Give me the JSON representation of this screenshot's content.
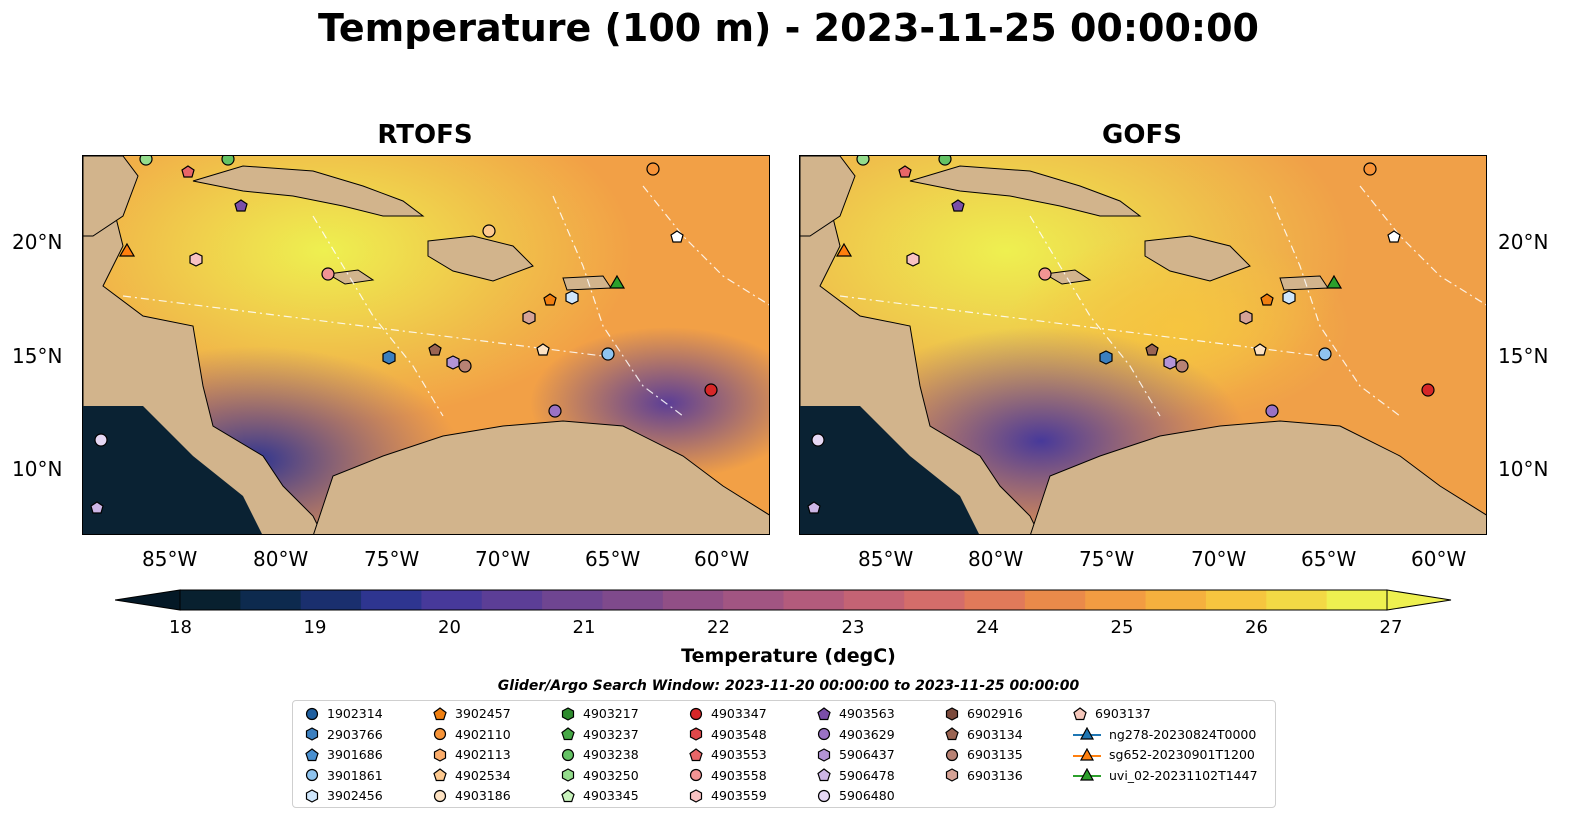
{
  "title": "Temperature (100 m) - 2023-11-25 00:00:00",
  "panels": [
    {
      "name": "RTOFS"
    },
    {
      "name": "GOFS"
    }
  ],
  "axes": {
    "lon_ticks": [
      "85°W",
      "80°W",
      "75°W",
      "70°W",
      "65°W",
      "60°W"
    ],
    "lat_ticks": [
      "20°N",
      "15°N",
      "10°N"
    ]
  },
  "colorbar": {
    "label": "Temperature (degC)",
    "ticks": [
      "18",
      "19",
      "20",
      "21",
      "22",
      "23",
      "24",
      "25",
      "26",
      "27"
    ],
    "colors": [
      "#08202f",
      "#0d2a4e",
      "#1a2f6e",
      "#2e3590",
      "#47399a",
      "#5c3e96",
      "#6f4591",
      "#7f4a8c",
      "#914f86",
      "#a25582",
      "#b35b7c",
      "#c46374",
      "#d46d6a",
      "#e17a5a",
      "#ea8a4a",
      "#f29c42",
      "#f5b03e",
      "#f6c53f",
      "#f3d945",
      "#eef050"
    ]
  },
  "search_window": "Glider/Argo Search Window: 2023-11-20 00:00:00 to 2023-11-25 00:00:00",
  "legend": {
    "columns": [
      [
        {
          "label": "1902314",
          "marker": "circle",
          "color": "#1f5f9f"
        },
        {
          "label": "2903766",
          "marker": "hexagon",
          "color": "#3b7fbf"
        },
        {
          "label": "3901686",
          "marker": "pentagon",
          "color": "#4a90d0"
        },
        {
          "label": "3901861",
          "marker": "circle",
          "color": "#8fc4ef"
        },
        {
          "label": "3902456",
          "marker": "hexagon",
          "color": "#cfe6fb"
        }
      ],
      [
        {
          "label": "3902457",
          "marker": "pentagon",
          "color": "#f07f10"
        },
        {
          "label": "4902110",
          "marker": "circle",
          "color": "#f79438"
        },
        {
          "label": "4902113",
          "marker": "hexagon",
          "color": "#fbad6b"
        },
        {
          "label": "4902534",
          "marker": "pentagon",
          "color": "#fdc98f"
        },
        {
          "label": "4903186",
          "marker": "circle",
          "color": "#fde2c2"
        }
      ],
      [
        {
          "label": "4903217",
          "marker": "hexagon",
          "color": "#2e8b2e"
        },
        {
          "label": "4903237",
          "marker": "pentagon",
          "color": "#46a846"
        },
        {
          "label": "4903238",
          "marker": "circle",
          "color": "#64c264"
        },
        {
          "label": "4903250",
          "marker": "hexagon",
          "color": "#94dc8c"
        },
        {
          "label": "4903345",
          "marker": "pentagon",
          "color": "#c9f3bd"
        }
      ],
      [
        {
          "label": "4903347",
          "marker": "circle",
          "color": "#d62728"
        },
        {
          "label": "4903548",
          "marker": "hexagon",
          "color": "#e0484a"
        },
        {
          "label": "4903553",
          "marker": "pentagon",
          "color": "#e86668"
        },
        {
          "label": "4903558",
          "marker": "circle",
          "color": "#f29494"
        },
        {
          "label": "4903559",
          "marker": "hexagon",
          "color": "#f8c2c2"
        }
      ],
      [
        {
          "label": "4903563",
          "marker": "pentagon",
          "color": "#7a4ea8"
        },
        {
          "label": "4903629",
          "marker": "circle",
          "color": "#9a72c4"
        },
        {
          "label": "5906437",
          "marker": "hexagon",
          "color": "#b394d6"
        },
        {
          "label": "5906478",
          "marker": "pentagon",
          "color": "#cdb6e6"
        },
        {
          "label": "5906480",
          "marker": "circle",
          "color": "#e6d8f4"
        }
      ],
      [
        {
          "label": "6902916",
          "marker": "hexagon",
          "color": "#7b4a3c"
        },
        {
          "label": "6903134",
          "marker": "pentagon",
          "color": "#9a6452"
        },
        {
          "label": "6903135",
          "marker": "circle",
          "color": "#b88274"
        },
        {
          "label": "6903136",
          "marker": "hexagon",
          "color": "#d6a396"
        }
      ],
      [
        {
          "label": "6903137",
          "marker": "pentagon",
          "color": "#f6c8bc"
        },
        {
          "label": "ng278-20230824T0000",
          "marker": "triangle-line",
          "color": "#1f77b4"
        },
        {
          "label": "sg652-20230901T1200",
          "marker": "triangle-line",
          "color": "#ff7f0e"
        },
        {
          "label": "uvi_02-20231102T1447",
          "marker": "triangle-line",
          "color": "#2ca02c"
        }
      ]
    ]
  },
  "chart_data": {
    "type": "heatmap",
    "title": "Temperature (100 m) - 2023-11-25 00:00:00",
    "subplots": [
      "RTOFS",
      "GOFS"
    ],
    "variable": "Temperature (degC)",
    "depth": "100 m",
    "color_range": [
      18,
      27
    ],
    "extend": "both",
    "xlabel_ticks": [
      "85°W",
      "80°W",
      "75°W",
      "70°W",
      "65°W",
      "60°W"
    ],
    "ylabel_ticks": [
      "20°N",
      "15°N",
      "10°N"
    ],
    "lon_range": [
      -89,
      -58
    ],
    "lat_range": [
      7,
      24
    ]
  }
}
